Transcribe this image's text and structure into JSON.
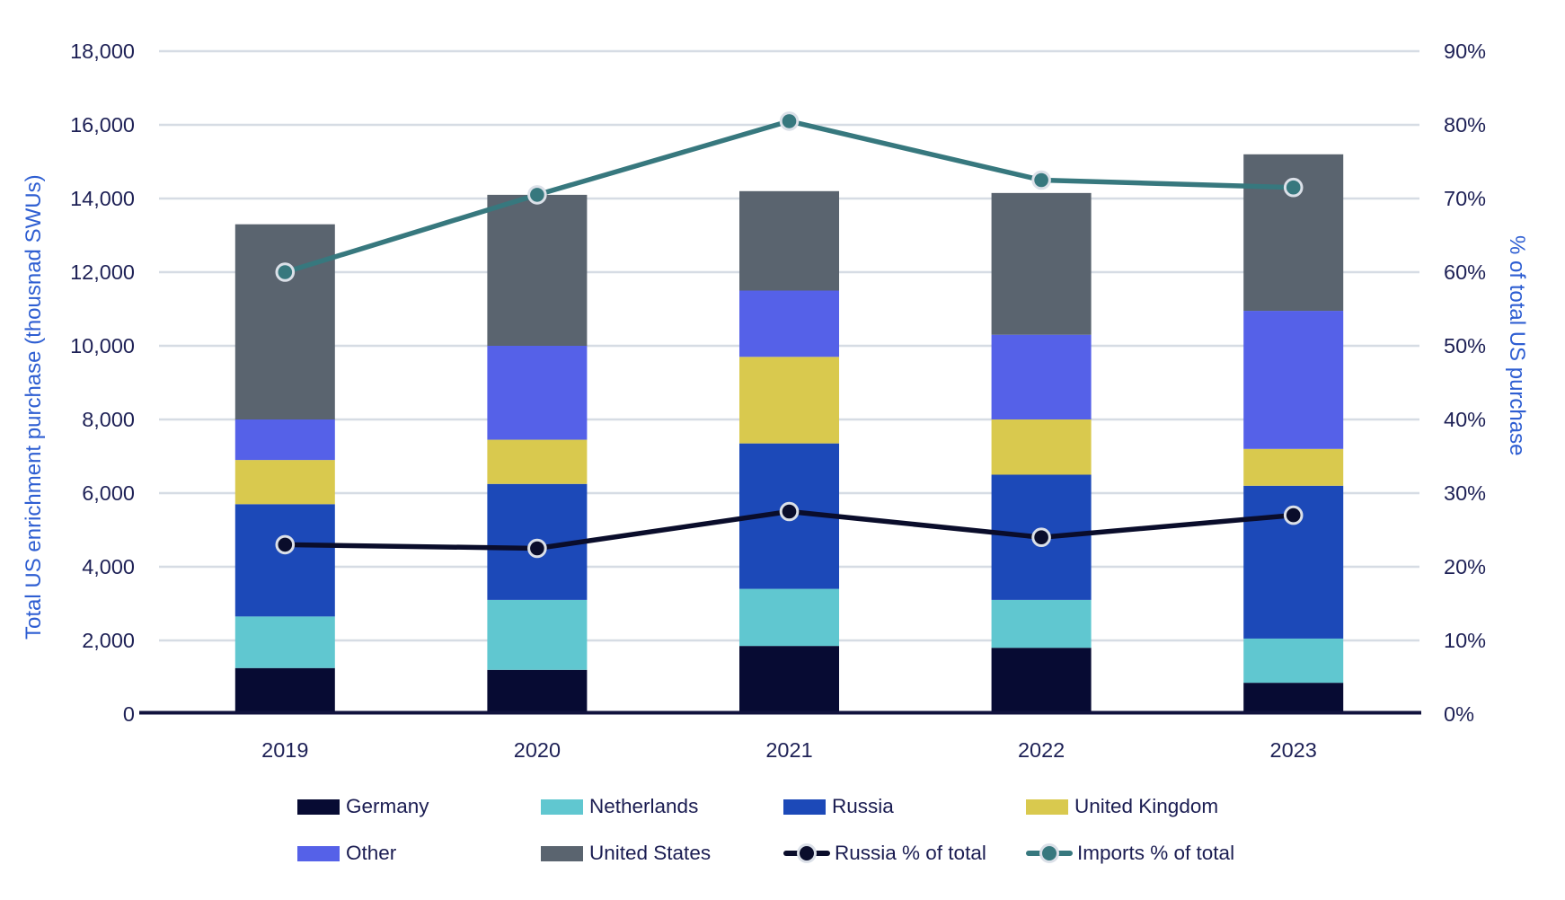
{
  "chart_data": {
    "type": "bar",
    "subtype": "stacked-bars-with-percent-lines",
    "title": "",
    "categories": [
      "2019",
      "2020",
      "2021",
      "2022",
      "2023"
    ],
    "bar_unit": "thousand SWUs",
    "series": [
      {
        "name": "Germany",
        "color": "#070b33",
        "values": [
          1250,
          1200,
          1850,
          1800,
          850
        ]
      },
      {
        "name": "Netherlands",
        "color": "#60c7d0",
        "values": [
          1400,
          1900,
          1550,
          1300,
          1200
        ]
      },
      {
        "name": "Russia",
        "color": "#1c49b8",
        "values": [
          3050,
          3150,
          3950,
          3400,
          4150
        ]
      },
      {
        "name": "United Kingdom",
        "color": "#d9c94e",
        "values": [
          1200,
          1200,
          2350,
          1500,
          1000
        ]
      },
      {
        "name": "Other",
        "color": "#5561e8",
        "values": [
          1100,
          2550,
          1800,
          2300,
          3750
        ]
      },
      {
        "name": "United States",
        "color": "#5a646f",
        "values": [
          5300,
          4100,
          2700,
          3850,
          4250
        ]
      }
    ],
    "line_series": [
      {
        "name": "Russia % of total",
        "color": "#0a0d2b",
        "marker_ring": "#dbe0e8",
        "values": [
          23,
          22.5,
          27.5,
          24,
          27
        ]
      },
      {
        "name": "Imports % of total",
        "color": "#37787e",
        "marker_ring": "#dbe0e8",
        "values": [
          60,
          70.5,
          80.5,
          72.5,
          71.5
        ]
      }
    ],
    "left_axis": {
      "label": "Total US enrichment purchase (thousnad SWUs)",
      "min": 0,
      "max": 18000,
      "step": 2000,
      "tick_labels": [
        "0",
        "2,000",
        "4,000",
        "6,000",
        "8,000",
        "10,000",
        "12,000",
        "14,000",
        "16,000",
        "18,000"
      ]
    },
    "right_axis": {
      "label": "% of total US purchase",
      "min": 0,
      "max": 90,
      "step": 10,
      "tick_labels": [
        "0%",
        "10%",
        "20%",
        "30%",
        "40%",
        "50%",
        "60%",
        "70%",
        "80%",
        "90%"
      ]
    },
    "legend": {
      "rows": [
        [
          {
            "label": "Germany",
            "marker": "swatch",
            "color": "#070b33"
          },
          {
            "label": "Netherlands",
            "marker": "swatch",
            "color": "#60c7d0"
          },
          {
            "label": "Russia",
            "marker": "swatch",
            "color": "#1c49b8"
          },
          {
            "label": "United Kingdom",
            "marker": "swatch",
            "color": "#d9c94e"
          }
        ],
        [
          {
            "label": "Other",
            "marker": "swatch",
            "color": "#5561e8"
          },
          {
            "label": "United States",
            "marker": "swatch",
            "color": "#5a646f"
          },
          {
            "label": "Russia % of total",
            "marker": "line",
            "color": "#0a0d2b"
          },
          {
            "label": "Imports % of total",
            "marker": "line",
            "color": "#37787e"
          }
        ]
      ]
    },
    "style_colors": {
      "gridline": "#d6dce4",
      "axis_line": "#11123d",
      "tick_text": "#1e2156",
      "axis_title_text": "#2e5ed2"
    }
  }
}
